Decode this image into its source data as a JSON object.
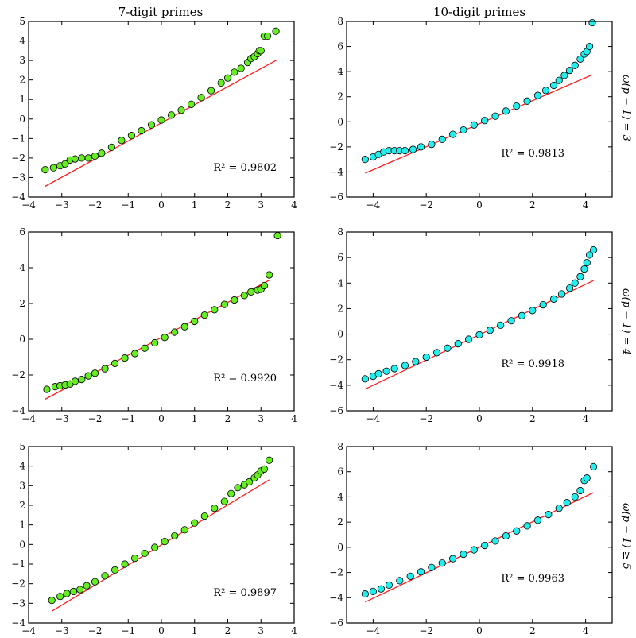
{
  "figure": {
    "columns": [
      "7-digit primes",
      "10-digit primes"
    ],
    "rows": [
      "ω(p − 1) = 3",
      "ω(p − 1) = 4",
      "ω(p − 1) ≥ 5"
    ]
  },
  "colors": {
    "series_7digit": "#66ee22",
    "series_10digit": "#22eeee",
    "fit_line": "#ff2020"
  },
  "chart_data": [
    {
      "type": "scatter",
      "column": "7-digit primes",
      "row": "ω(p − 1) = 3",
      "xlim": [
        -4,
        4
      ],
      "ylim": [
        -4,
        5
      ],
      "xticks": [
        -4,
        -3,
        -2,
        -1,
        0,
        1,
        2,
        3,
        4
      ],
      "yticks": [
        -4,
        -3,
        -2,
        -1,
        0,
        1,
        2,
        3,
        4,
        5
      ],
      "annotation": "R² = 0.9802",
      "fit_line": {
        "x": [
          -3.5,
          3.5
        ],
        "y": [
          -3.45,
          3.05
        ]
      },
      "points": {
        "x": [
          -3.5,
          -3.25,
          -3.05,
          -2.9,
          -2.75,
          -2.6,
          -2.4,
          -2.2,
          -2.0,
          -1.8,
          -1.5,
          -1.2,
          -0.9,
          -0.6,
          -0.3,
          0.0,
          0.3,
          0.6,
          0.9,
          1.2,
          1.5,
          1.8,
          2.0,
          2.2,
          2.4,
          2.6,
          2.7,
          2.8,
          2.9,
          2.95,
          3.0,
          3.1,
          3.2,
          3.45
        ],
        "y": [
          -2.6,
          -2.5,
          -2.4,
          -2.3,
          -2.1,
          -2.05,
          -2.0,
          -2.0,
          -1.9,
          -1.75,
          -1.45,
          -1.1,
          -0.85,
          -0.6,
          -0.3,
          -0.05,
          0.2,
          0.45,
          0.75,
          1.1,
          1.45,
          1.85,
          2.1,
          2.4,
          2.6,
          2.9,
          3.1,
          3.2,
          3.35,
          3.5,
          3.5,
          4.25,
          4.25,
          4.5
        ]
      }
    },
    {
      "type": "scatter",
      "column": "10-digit primes",
      "row": "ω(p − 1) = 3",
      "xlim": [
        -5,
        5
      ],
      "ylim": [
        -6,
        8
      ],
      "xticks": [
        -4,
        -2,
        0,
        2,
        4
      ],
      "yticks": [
        -6,
        -4,
        -2,
        0,
        2,
        4,
        6,
        8
      ],
      "annotation": "R² = 0.9813",
      "fit_line": {
        "x": [
          -4.3,
          4.2
        ],
        "y": [
          -4.1,
          3.7
        ]
      },
      "points": {
        "x": [
          -4.3,
          -4.0,
          -3.8,
          -3.6,
          -3.4,
          -3.2,
          -3.0,
          -2.8,
          -2.5,
          -2.2,
          -1.8,
          -1.4,
          -1.0,
          -0.6,
          -0.2,
          0.2,
          0.6,
          1.0,
          1.4,
          1.8,
          2.2,
          2.5,
          2.8,
          3.0,
          3.2,
          3.4,
          3.6,
          3.8,
          3.95,
          4.05,
          4.15,
          4.25
        ],
        "y": [
          -3.0,
          -2.8,
          -2.6,
          -2.4,
          -2.3,
          -2.3,
          -2.3,
          -2.3,
          -2.2,
          -2.0,
          -1.8,
          -1.4,
          -1.0,
          -0.65,
          -0.25,
          0.1,
          0.45,
          0.85,
          1.25,
          1.65,
          2.1,
          2.5,
          2.9,
          3.3,
          3.7,
          4.1,
          4.5,
          5.0,
          5.4,
          5.6,
          6.0,
          7.9
        ]
      }
    },
    {
      "type": "scatter",
      "column": "7-digit primes",
      "row": "ω(p − 1) = 4",
      "xlim": [
        -4,
        4
      ],
      "ylim": [
        -4,
        6
      ],
      "xticks": [
        -4,
        -3,
        -2,
        -1,
        0,
        1,
        2,
        3,
        4
      ],
      "yticks": [
        -4,
        -2,
        0,
        2,
        4,
        6
      ],
      "annotation": "R² = 0.9920",
      "fit_line": {
        "x": [
          -3.5,
          3.25
        ],
        "y": [
          -3.35,
          3.3
        ]
      },
      "points": {
        "x": [
          -3.45,
          -3.2,
          -3.05,
          -2.9,
          -2.75,
          -2.6,
          -2.4,
          -2.2,
          -2.0,
          -1.7,
          -1.4,
          -1.1,
          -0.8,
          -0.5,
          -0.2,
          0.1,
          0.4,
          0.7,
          1.0,
          1.3,
          1.6,
          1.9,
          2.2,
          2.5,
          2.7,
          2.9,
          3.0,
          3.1,
          3.25,
          3.5
        ],
        "y": [
          -2.8,
          -2.65,
          -2.6,
          -2.55,
          -2.5,
          -2.35,
          -2.25,
          -2.05,
          -1.9,
          -1.65,
          -1.35,
          -1.05,
          -0.8,
          -0.5,
          -0.2,
          0.1,
          0.4,
          0.7,
          1.0,
          1.35,
          1.65,
          1.95,
          2.2,
          2.45,
          2.65,
          2.75,
          2.8,
          3.0,
          3.6,
          5.8
        ]
      }
    },
    {
      "type": "scatter",
      "column": "10-digit primes",
      "row": "ω(p − 1) = 4",
      "xlim": [
        -5,
        5
      ],
      "ylim": [
        -6,
        8
      ],
      "xticks": [
        -4,
        -2,
        0,
        2,
        4
      ],
      "yticks": [
        -6,
        -4,
        -2,
        0,
        2,
        4,
        6,
        8
      ],
      "annotation": "R² = 0.9918",
      "fit_line": {
        "x": [
          -4.3,
          4.3
        ],
        "y": [
          -4.3,
          4.2
        ]
      },
      "points": {
        "x": [
          -4.3,
          -4.0,
          -3.8,
          -3.5,
          -3.2,
          -2.8,
          -2.4,
          -2.0,
          -1.6,
          -1.2,
          -0.8,
          -0.4,
          0.0,
          0.4,
          0.8,
          1.2,
          1.6,
          2.0,
          2.4,
          2.8,
          3.1,
          3.4,
          3.6,
          3.8,
          3.95,
          4.05,
          4.15,
          4.3
        ],
        "y": [
          -3.5,
          -3.3,
          -3.1,
          -2.9,
          -2.7,
          -2.45,
          -2.15,
          -1.8,
          -1.45,
          -1.1,
          -0.75,
          -0.4,
          -0.05,
          0.3,
          0.7,
          1.05,
          1.45,
          1.85,
          2.3,
          2.75,
          3.15,
          3.6,
          4.0,
          4.5,
          5.1,
          5.6,
          6.2,
          6.6
        ]
      }
    },
    {
      "type": "scatter",
      "column": "7-digit primes",
      "row": "ω(p − 1) ≥ 5",
      "xlim": [
        -4,
        4
      ],
      "ylim": [
        -4,
        5
      ],
      "xticks": [
        -4,
        -3,
        -2,
        -1,
        0,
        1,
        2,
        3,
        4
      ],
      "yticks": [
        -4,
        -3,
        -2,
        -1,
        0,
        1,
        2,
        3,
        4,
        5
      ],
      "annotation": "R² = 0.9897",
      "fit_line": {
        "x": [
          -3.3,
          3.25
        ],
        "y": [
          -3.4,
          3.3
        ]
      },
      "points": {
        "x": [
          -3.3,
          -3.05,
          -2.85,
          -2.65,
          -2.45,
          -2.25,
          -2.0,
          -1.7,
          -1.4,
          -1.1,
          -0.8,
          -0.5,
          -0.2,
          0.1,
          0.4,
          0.7,
          1.0,
          1.3,
          1.6,
          1.9,
          2.1,
          2.3,
          2.5,
          2.65,
          2.8,
          2.9,
          3.0,
          3.1,
          3.25
        ],
        "y": [
          -2.85,
          -2.65,
          -2.5,
          -2.4,
          -2.3,
          -2.1,
          -1.9,
          -1.6,
          -1.3,
          -1.0,
          -0.7,
          -0.45,
          -0.15,
          0.15,
          0.45,
          0.75,
          1.1,
          1.45,
          1.85,
          2.2,
          2.6,
          2.9,
          3.05,
          3.2,
          3.4,
          3.55,
          3.75,
          3.85,
          4.3
        ]
      }
    },
    {
      "type": "scatter",
      "column": "10-digit primes",
      "row": "ω(p − 1) ≥ 5",
      "xlim": [
        -5,
        5
      ],
      "ylim": [
        -6,
        8
      ],
      "xticks": [
        -4,
        -2,
        0,
        2,
        4
      ],
      "yticks": [
        -6,
        -4,
        -2,
        0,
        2,
        4,
        6,
        8
      ],
      "annotation": "R² = 0.9963",
      "fit_line": {
        "x": [
          -4.3,
          4.3
        ],
        "y": [
          -4.35,
          4.35
        ]
      },
      "points": {
        "x": [
          -4.3,
          -4.0,
          -3.7,
          -3.4,
          -3.0,
          -2.6,
          -2.2,
          -1.8,
          -1.4,
          -1.0,
          -0.6,
          -0.2,
          0.2,
          0.6,
          1.0,
          1.4,
          1.8,
          2.2,
          2.6,
          3.0,
          3.3,
          3.6,
          3.8,
          3.95,
          4.05,
          4.3
        ],
        "y": [
          -3.7,
          -3.5,
          -3.3,
          -3.0,
          -2.65,
          -2.3,
          -1.95,
          -1.6,
          -1.25,
          -0.9,
          -0.55,
          -0.2,
          0.15,
          0.5,
          0.9,
          1.3,
          1.7,
          2.15,
          2.6,
          3.1,
          3.55,
          4.0,
          4.5,
          5.3,
          5.5,
          6.4
        ]
      }
    }
  ]
}
